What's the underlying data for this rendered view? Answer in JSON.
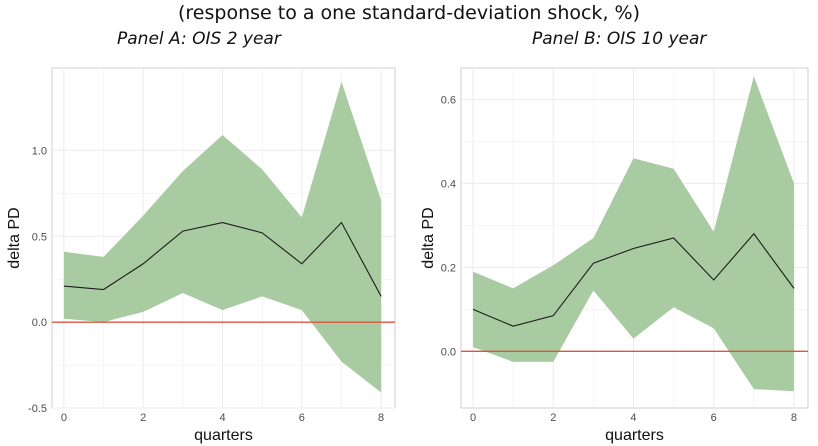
{
  "figure": {
    "title": "(response to a one standard-deviation shock, %)"
  },
  "colors": {
    "band": "#a8cba1",
    "line": "#1c1c1c",
    "zero_line": "#e0533e",
    "grid": "#ebebeb"
  },
  "chart_data": [
    {
      "type": "line",
      "title": "Panel A: OIS 2 year",
      "xlabel": "quarters",
      "ylabel": "delta PD",
      "xlim": [
        -0.3,
        8.35
      ],
      "ylim": [
        -0.5,
        1.48
      ],
      "x_ticks": [
        0,
        2,
        4,
        6,
        8
      ],
      "y_ticks": [
        -0.5,
        0.0,
        0.5,
        1.0
      ],
      "y_tick_labels": [
        "-0.5",
        "0.0",
        "0.5",
        "1.0"
      ],
      "reference_line": 0,
      "grid": true,
      "x": [
        0,
        1,
        2,
        3,
        4,
        5,
        6,
        7,
        8
      ],
      "series": [
        {
          "values": [
            0.21,
            0.19,
            0.34,
            0.53,
            0.58,
            0.52,
            0.34,
            0.58,
            0.15
          ]
        }
      ],
      "band": {
        "lower": [
          0.02,
          0.0,
          0.06,
          0.17,
          0.07,
          0.15,
          0.07,
          -0.23,
          -0.41
        ],
        "upper": [
          0.41,
          0.38,
          0.62,
          0.88,
          1.09,
          0.89,
          0.61,
          1.4,
          0.71
        ]
      }
    },
    {
      "type": "line",
      "title": "Panel B: OIS 10 year",
      "xlabel": "quarters",
      "ylabel": "delta PD",
      "xlim": [
        -0.3,
        8.35
      ],
      "ylim": [
        -0.135,
        0.675
      ],
      "x_ticks": [
        0,
        2,
        4,
        6,
        8
      ],
      "y_ticks": [
        0.0,
        0.2,
        0.4,
        0.6
      ],
      "y_tick_labels": [
        "0.0",
        "0.2",
        "0.4",
        "0.6"
      ],
      "reference_line": 0,
      "grid": true,
      "x": [
        0,
        1,
        2,
        3,
        4,
        5,
        6,
        7,
        8
      ],
      "series": [
        {
          "values": [
            0.1,
            0.06,
            0.085,
            0.21,
            0.245,
            0.27,
            0.17,
            0.28,
            0.15
          ]
        }
      ],
      "band": {
        "lower": [
          0.01,
          -0.025,
          -0.025,
          0.145,
          0.03,
          0.105,
          0.055,
          -0.09,
          -0.095
        ],
        "upper": [
          0.19,
          0.15,
          0.205,
          0.27,
          0.46,
          0.435,
          0.285,
          0.655,
          0.4
        ]
      }
    }
  ]
}
